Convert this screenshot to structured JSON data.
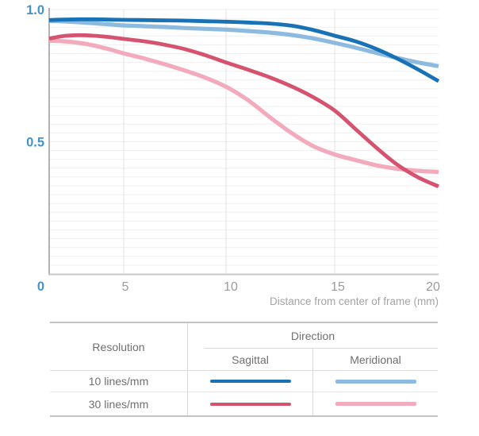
{
  "chart_data": {
    "type": "line",
    "title": "",
    "xlabel": "Distance from center of frame (mm)",
    "ylabel": "",
    "xlim": [
      0,
      20
    ],
    "ylim": [
      0,
      1.0
    ],
    "grid": true,
    "x_tick_values": [
      0,
      5,
      10,
      15,
      20
    ],
    "x_tick_labels": [
      "5",
      "10",
      "15",
      "20"
    ],
    "y_ticks": [
      {
        "label": "1.0",
        "value": 1.0
      },
      {
        "label": "0.5",
        "value": 0.5
      },
      {
        "label": "0",
        "value": 0.0
      }
    ],
    "x": [
      0,
      1,
      2,
      3,
      4,
      5,
      6,
      7,
      8,
      9,
      10,
      11,
      12,
      13,
      14,
      15,
      16,
      17,
      18,
      19,
      20
    ],
    "series": [
      {
        "name": "10 lines/mm — Sagittal",
        "color": "#1a72b6",
        "values": [
          0.96,
          0.962,
          0.963,
          0.963,
          0.962,
          0.961,
          0.96,
          0.959,
          0.958,
          0.956,
          0.954,
          0.951,
          0.947,
          0.939,
          0.923,
          0.901,
          0.88,
          0.851,
          0.815,
          0.774,
          0.729
        ]
      },
      {
        "name": "10 lines/mm — Meridional",
        "color": "#8dbbe0",
        "values": [
          0.957,
          0.955,
          0.952,
          0.948,
          0.944,
          0.94,
          0.937,
          0.934,
          0.93,
          0.927,
          0.924,
          0.919,
          0.913,
          0.904,
          0.891,
          0.874,
          0.856,
          0.836,
          0.817,
          0.8,
          0.786
        ]
      },
      {
        "name": "30 lines/mm — Sagittal",
        "color": "#d5536f",
        "values": [
          0.89,
          0.9,
          0.903,
          0.901,
          0.896,
          0.889,
          0.88,
          0.867,
          0.85,
          0.827,
          0.8,
          0.773,
          0.744,
          0.71,
          0.669,
          0.618,
          0.548,
          0.478,
          0.414,
          0.366,
          0.331
        ]
      },
      {
        "name": "30 lines/mm — Meridional",
        "color": "#f2aabc",
        "values": [
          0.882,
          0.88,
          0.874,
          0.864,
          0.85,
          0.834,
          0.815,
          0.793,
          0.769,
          0.742,
          0.708,
          0.658,
          0.594,
          0.534,
          0.484,
          0.452,
          0.431,
          0.411,
          0.398,
          0.39,
          0.386
        ]
      }
    ],
    "legend_position": "bottom-table"
  },
  "axis": {
    "x_title": "Distance from center of frame (mm)",
    "y_label_color": "#4293cc",
    "x_tick_color": "#9b9b9b",
    "x_title_color": "#a3a3a2"
  },
  "chart_style": {
    "h_gridline_color": "#efefef",
    "v_gridline_color": "#e3e3e3",
    "y_axis_color": "#b2b2b2",
    "x_axis_color": "#c7c7c7"
  },
  "legend": {
    "resolution_header": "Resolution",
    "direction_header": "Direction",
    "sagittal_header": "Sagittal",
    "meridional_header": "Meridional",
    "rows": [
      {
        "label": "10 lines/mm"
      },
      {
        "label": "30 lines/mm"
      }
    ]
  }
}
